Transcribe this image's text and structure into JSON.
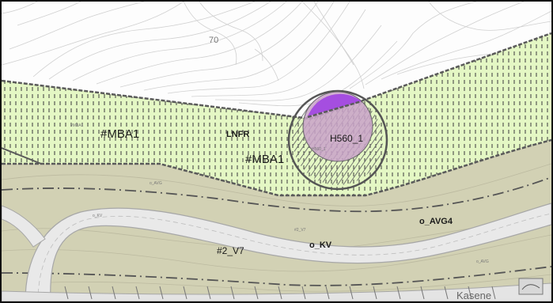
{
  "map": {
    "labels": {
      "contour_70": "70",
      "mba1_left": "#MBA1",
      "mba1_center": "#MBA1",
      "lnfr": "LNFR",
      "h560": "H560_1",
      "h560_small": "H560_1",
      "o_avg4": "o_AVG4",
      "o_kv": "o_KV",
      "v7": "#2_V7",
      "kasene": "Kasene",
      "mba1_tiny": "#MBA1",
      "o_avg_small_1": "o_AVG",
      "o_avg_small_2": "o_AVG",
      "kv_small": "#2_V7",
      "kvc_small": "o_KV"
    },
    "colors": {
      "zone_green": "#e4f7c4",
      "road_band": "#d2d1b4",
      "road_surface": "#e9e9e9",
      "hazard_purple": "#a54ee0",
      "circle_fill": "#c9a2c9",
      "boundary": "#555555",
      "contour": "#cfcfcf"
    }
  }
}
